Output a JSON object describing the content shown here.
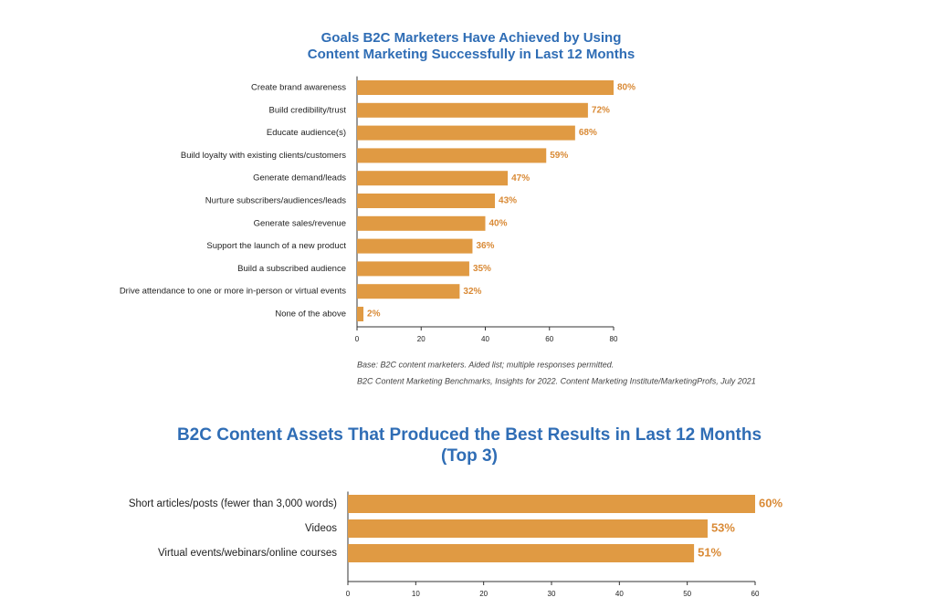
{
  "chart_data": [
    {
      "type": "bar",
      "orientation": "horizontal",
      "title": [
        "Goals B2C Marketers Have Achieved by Using",
        "Content Marketing Successfully in Last 12 Months"
      ],
      "categories": [
        "Create brand awareness",
        "Build credibility/trust",
        "Educate audience(s)",
        "Build loyalty with existing clients/customers",
        "Generate demand/leads",
        "Nurture subscribers/audiences/leads",
        "Generate sales/revenue",
        "Support the launch of a new product",
        "Build a subscribed audience",
        "Drive attendance to one or more in-person or virtual events",
        "None of the above"
      ],
      "values": [
        80,
        72,
        68,
        59,
        47,
        43,
        40,
        36,
        35,
        32,
        2
      ],
      "value_labels": [
        "80%",
        "72%",
        "68%",
        "59%",
        "47%",
        "43%",
        "40%",
        "36%",
        "35%",
        "32%",
        "2%"
      ],
      "color": "#e09a43",
      "xlim": [
        0,
        80
      ],
      "xticks": [
        0,
        20,
        40,
        60,
        80
      ],
      "notes": [
        "Base: B2C content marketers. Aided list; multiple responses permitted.",
        "B2C Content Marketing Benchmarks, Insights for 2022. Content Marketing Institute/MarketingProfs, July 2021"
      ]
    },
    {
      "type": "bar",
      "orientation": "horizontal",
      "title": [
        "B2C Content Assets That Produced the Best Results in Last 12 Months",
        "(Top 3)"
      ],
      "categories": [
        "Short articles/posts (fewer than 3,000 words)",
        "Videos",
        "Virtual events/webinars/online courses"
      ],
      "values": [
        60,
        53,
        51
      ],
      "value_labels": [
        "60%",
        "53%",
        "51%"
      ],
      "color": "#e09a43",
      "xlim": [
        0,
        60
      ],
      "xticks": [
        0,
        10,
        20,
        30,
        40,
        50,
        60
      ]
    }
  ]
}
